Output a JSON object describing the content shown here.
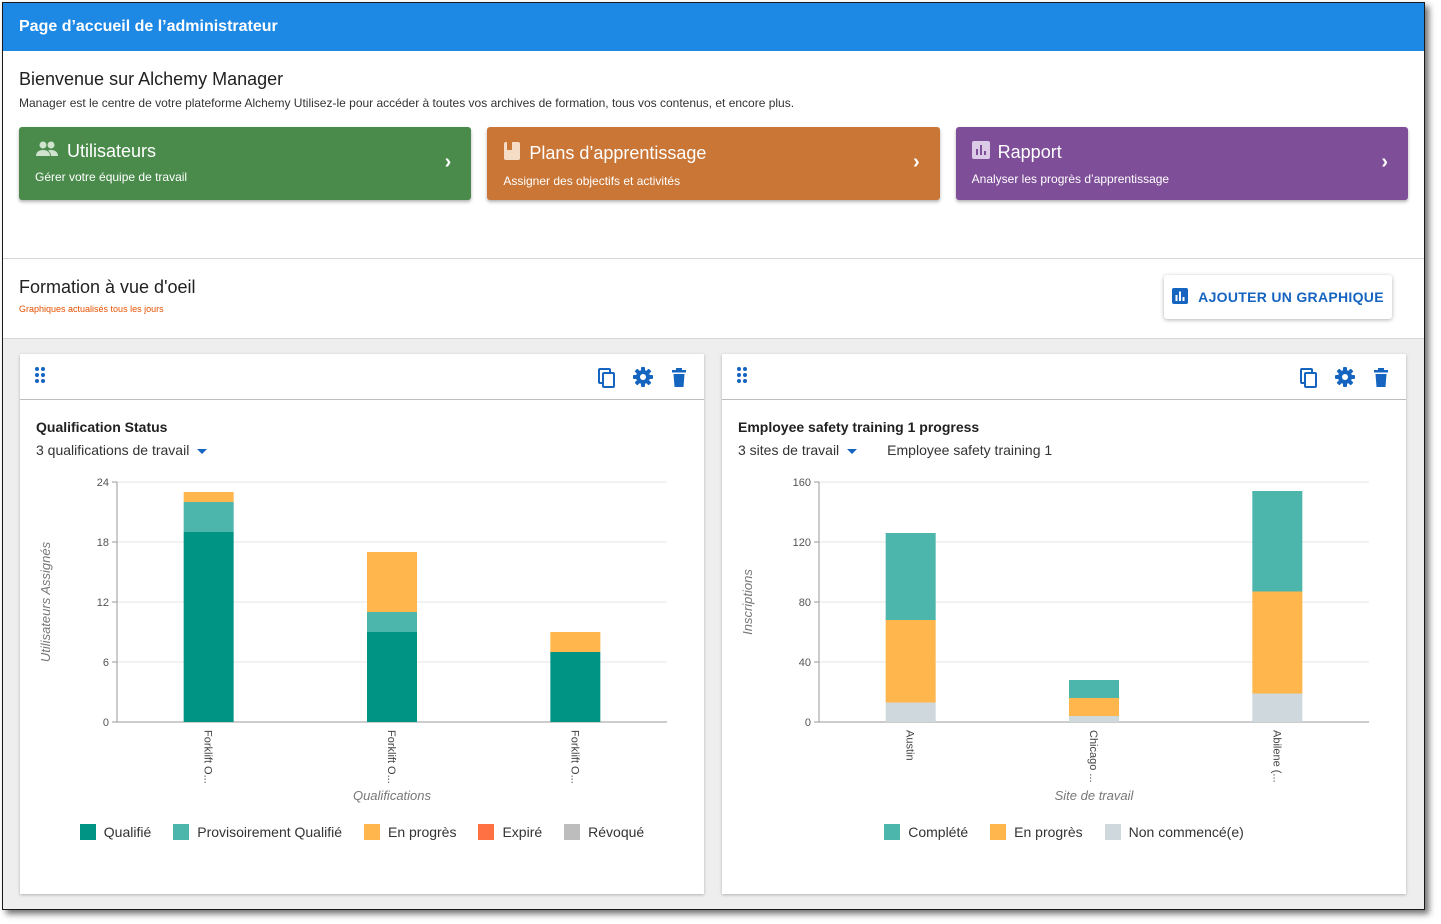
{
  "header": {
    "title": "Page d’accueil de l’administrateur"
  },
  "welcome": {
    "title": "Bienvenue sur Alchemy Manager",
    "description": "Manager est le centre de votre plateforme Alchemy Utilisez-le pour accéder à toutes vos archives de formation, tous vos contenus, et encore plus."
  },
  "cards": [
    {
      "title": "Utilisateurs",
      "subtitle": "Gérer votre équipe de travail",
      "icon": "people-icon",
      "color": "#4a8b4c"
    },
    {
      "title": "Plans d’apprentissage",
      "subtitle": "Assigner des objectifs et activités",
      "icon": "book-icon",
      "color": "#c97636"
    },
    {
      "title": "Rapport",
      "subtitle": "Analyser les progrès d’apprentissage",
      "icon": "bar-chart-icon",
      "color": "#7e4e99"
    }
  ],
  "glance": {
    "title": "Formation à vue d'oeil",
    "note": "Graphiques actualisés tous les jours",
    "add_button": "AJOUTER UN GRAPHIQUE"
  },
  "panels": [
    {
      "title": "Qualification Status",
      "filter": "3 qualifications de travail",
      "filter2": ""
    },
    {
      "title": "Employee safety training 1 progress",
      "filter": "3 sites de travail",
      "filter2": "Employee safety training 1"
    }
  ],
  "chart_data": [
    {
      "type": "bar",
      "stacked": true,
      "title": "Qualification Status",
      "xlabel": "Qualifications",
      "ylabel": "Utilisateurs Assignés",
      "categories": [
        "Forklift O...",
        "Forklift O...",
        "Forklift O..."
      ],
      "ylim": [
        0,
        24
      ],
      "yticks": [
        0,
        6,
        12,
        18,
        24
      ],
      "grid": true,
      "legend_position": "bottom",
      "series": [
        {
          "name": "Qualifié",
          "color": "#009485",
          "values": [
            19,
            9,
            7
          ]
        },
        {
          "name": "Provisoirement Qualifié",
          "color": "#4db6ac",
          "values": [
            3,
            2,
            0
          ]
        },
        {
          "name": "En progrès",
          "color": "#ffb74d",
          "values": [
            1,
            6,
            2
          ]
        },
        {
          "name": "Expiré",
          "color": "#ff7043",
          "values": [
            0,
            0,
            0
          ]
        },
        {
          "name": "Révoqué",
          "color": "#bdbdbd",
          "values": [
            0,
            0,
            0
          ]
        }
      ]
    },
    {
      "type": "bar",
      "stacked": true,
      "title": "Employee safety training 1 progress",
      "xlabel": "Site de travail",
      "ylabel": "Inscriptions",
      "categories": [
        "Austin",
        "Chicago ...",
        "Abilene (..."
      ],
      "ylim": [
        0,
        160
      ],
      "yticks": [
        0,
        40,
        80,
        120,
        160
      ],
      "grid": true,
      "legend_position": "bottom",
      "series": [
        {
          "name": "Non commencé(e)",
          "color": "#cfd8dc",
          "values": [
            13,
            4,
            19
          ]
        },
        {
          "name": "En progrès",
          "color": "#ffb74d",
          "values": [
            55,
            12,
            68
          ]
        },
        {
          "name": "Complété",
          "color": "#4db6ac",
          "values": [
            58,
            12,
            67
          ]
        }
      ],
      "legend_order": [
        "Complété",
        "En progrès",
        "Non commencé(e)"
      ]
    }
  ]
}
